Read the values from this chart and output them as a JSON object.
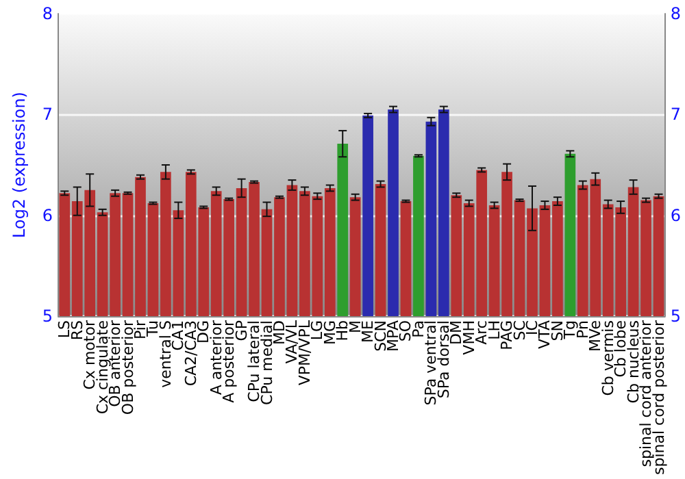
{
  "chart_data": {
    "type": "bar",
    "ylabel": "Log2 (expression)",
    "categories": [
      "LS",
      "RS",
      "Cx motor",
      "Cx cingulate",
      "OB anterior",
      "OB posterior",
      "Pir",
      "Tu",
      "ventral S",
      "CA1",
      "CA2/CA3",
      "DG",
      "A anterior",
      "A posterior",
      "GP",
      "CPu lateral",
      "CPu medial",
      "MD",
      "VA/VL",
      "VPM/VPL",
      "LG",
      "MG",
      "Hb",
      "M",
      "ME",
      "SCN",
      "MPA",
      "SO",
      "Pa",
      "SPa ventral",
      "SPa dorsal",
      "DM",
      "VMH",
      "Arc",
      "LH",
      "PAG",
      "SC",
      "IC",
      "VTA",
      "SN",
      "Tg",
      "Pn",
      "MVe",
      "Cb vermis",
      "Cb lobe",
      "Cb nucleus",
      "spinal cord anterior",
      "spinal cord posterior"
    ],
    "values": [
      6.22,
      6.14,
      6.25,
      6.03,
      6.22,
      6.22,
      6.38,
      6.12,
      6.43,
      6.05,
      6.43,
      6.08,
      6.24,
      6.16,
      6.27,
      6.33,
      6.06,
      6.18,
      6.3,
      6.24,
      6.19,
      6.27,
      6.71,
      6.18,
      6.99,
      6.31,
      7.05,
      6.14,
      6.59,
      6.93,
      7.05,
      6.2,
      6.12,
      6.45,
      6.1,
      6.43,
      6.15,
      6.07,
      6.1,
      6.14,
      6.61,
      6.3,
      6.36,
      6.11,
      6.08,
      6.28,
      6.15,
      6.19
    ],
    "errors": [
      0.02,
      0.14,
      0.16,
      0.03,
      0.03,
      0.01,
      0.02,
      0.01,
      0.07,
      0.08,
      0.02,
      0.01,
      0.04,
      0.01,
      0.09,
      0.01,
      0.07,
      0.01,
      0.05,
      0.04,
      0.03,
      0.03,
      0.13,
      0.03,
      0.02,
      0.03,
      0.03,
      0.01,
      0.01,
      0.04,
      0.03,
      0.02,
      0.03,
      0.02,
      0.03,
      0.08,
      0.01,
      0.22,
      0.04,
      0.04,
      0.03,
      0.04,
      0.06,
      0.04,
      0.06,
      0.07,
      0.02,
      0.02
    ],
    "colors": [
      "#b83232",
      "#b83232",
      "#b83232",
      "#b83232",
      "#b83232",
      "#b83232",
      "#b83232",
      "#b83232",
      "#b83232",
      "#b83232",
      "#b83232",
      "#b83232",
      "#b83232",
      "#b83232",
      "#b83232",
      "#b83232",
      "#b83232",
      "#b83232",
      "#b83232",
      "#b83232",
      "#b83232",
      "#b83232",
      "#2e9e2e",
      "#b83232",
      "#2b2bae",
      "#b83232",
      "#2b2bae",
      "#b83232",
      "#2e9e2e",
      "#2b2bae",
      "#2b2bae",
      "#b83232",
      "#b83232",
      "#b83232",
      "#b83232",
      "#b83232",
      "#b83232",
      "#b83232",
      "#b83232",
      "#b83232",
      "#2e9e2e",
      "#b83232",
      "#b83232",
      "#b83232",
      "#b83232",
      "#b83232",
      "#b83232",
      "#b83232"
    ],
    "ylim": [
      5,
      8
    ],
    "yticks": [
      5,
      6,
      7,
      8
    ],
    "y2lim": [
      5,
      8
    ],
    "y2ticks": [
      5,
      6,
      7,
      8
    ],
    "grid": "y"
  }
}
